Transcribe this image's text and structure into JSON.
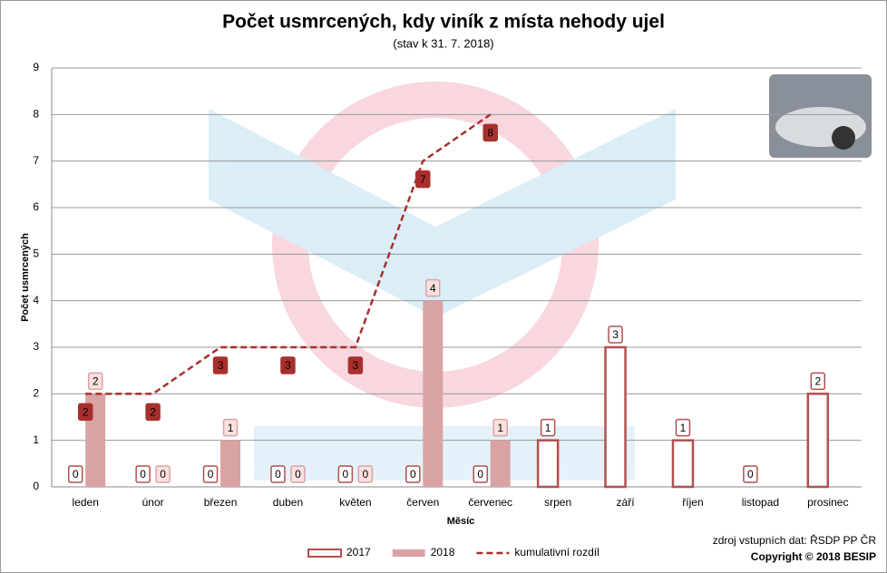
{
  "chart_data": {
    "type": "bar",
    "title": "Počet usmrcených, kdy viník z místa nehody ujel",
    "subtitle": "(stav k 31. 7. 2018)",
    "y_label": "Počet usmrcených",
    "x_label": "Měsíc",
    "categories": [
      "leden",
      "únor",
      "březen",
      "duben",
      "květen",
      "červen",
      "červenec",
      "srpen",
      "září",
      "říjen",
      "listopad",
      "prosinec"
    ],
    "series": [
      {
        "name": "2017",
        "type": "bar",
        "color": "#b0504f",
        "fill": "#ffffff",
        "values": [
          0,
          0,
          0,
          0,
          0,
          0,
          0,
          1,
          3,
          1,
          0,
          2
        ]
      },
      {
        "name": "2018",
        "type": "bar",
        "color": "#d9a3a3",
        "fill": "#d9a3a3",
        "values": [
          2,
          0,
          1,
          0,
          0,
          4,
          1,
          null,
          null,
          null,
          null,
          null
        ]
      },
      {
        "name": "kumulativní rozdíl",
        "type": "line",
        "color": "#a8302c",
        "values": [
          2,
          2,
          3,
          3,
          3,
          7,
          8,
          null,
          null,
          null,
          null,
          null
        ]
      }
    ],
    "ylim": [
      0,
      9
    ],
    "yticks": [
      0,
      1,
      2,
      3,
      4,
      5,
      6,
      7,
      8,
      9
    ],
    "grid": true,
    "legend": "bottom",
    "source": "zdroj vstupních dat: ŘSDP PP ČR",
    "copyright": "Copyright © 2018 BESIP"
  }
}
